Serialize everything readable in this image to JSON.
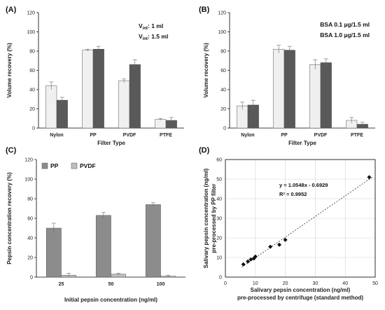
{
  "colors": {
    "light": "#f0f0f0",
    "dark": "#595959",
    "pp": "#8c8c8c",
    "pvdf": "#bdbdbd",
    "axis": "#000000",
    "grid": "#d4d4d4"
  },
  "chart_data": [
    {
      "panel_label": "(A)",
      "type": "bar",
      "categories": [
        "Nylon",
        "PP",
        "PVDF",
        "PTFE"
      ],
      "series": [
        {
          "name": "1 ml",
          "values": [
            44,
            81,
            49,
            9
          ],
          "errors": [
            4,
            1,
            2,
            1
          ]
        },
        {
          "name": "1.5 ml",
          "values": [
            29,
            82,
            66,
            8
          ],
          "errors": [
            3,
            3,
            5,
            3
          ]
        }
      ],
      "legend_prefix": "V",
      "legend_sub": "int",
      "legend_sep": ": ",
      "xlabel": "Filter Type",
      "ylabel": "Volume recovery (%)",
      "ylim": [
        0,
        120
      ],
      "yticks": [
        "0",
        "20",
        "40",
        "60",
        "80",
        "100",
        "120"
      ],
      "legend_position": "top-right",
      "grid": false
    },
    {
      "panel_label": "(B)",
      "type": "bar",
      "categories": [
        "Nylon",
        "PP",
        "PVDF",
        "PTFE"
      ],
      "series": [
        {
          "name": "BSA 0.1 µg/1.5 ml",
          "values": [
            23,
            82,
            66,
            8
          ],
          "errors": [
            4,
            4,
            5,
            3
          ]
        },
        {
          "name": "BSA 1.0 µg/1.5 ml",
          "values": [
            24,
            81,
            68,
            4
          ],
          "errors": [
            5,
            4,
            4,
            2
          ]
        }
      ],
      "xlabel": "Filter Type",
      "ylabel": "Volume recovery (%)",
      "ylim": [
        0,
        120
      ],
      "yticks": [
        "0",
        "20",
        "40",
        "60",
        "80",
        "100",
        "120"
      ],
      "legend_position": "top-right",
      "grid": false
    },
    {
      "panel_label": "(C)",
      "type": "bar",
      "categories": [
        "25",
        "50",
        "100"
      ],
      "series": [
        {
          "name": "PP",
          "values": [
            50,
            63,
            74
          ],
          "errors": [
            5,
            3,
            2
          ]
        },
        {
          "name": "PVDF",
          "values": [
            2,
            3,
            1
          ],
          "errors": [
            2,
            1,
            1
          ]
        }
      ],
      "xlabel": "Initial pepsin concentration (ng/ml)",
      "ylabel": "Pepsin concentration recovery (%)",
      "ylim": [
        0,
        120
      ],
      "yticks": [
        "0",
        "20",
        "40",
        "60",
        "80",
        "100",
        "120"
      ],
      "legend_position": "top-left",
      "grid": false
    },
    {
      "panel_label": "(D)",
      "type": "scatter",
      "x": [
        6,
        7.5,
        8.5,
        9.5,
        10,
        15,
        18,
        20,
        48
      ],
      "y": [
        6.5,
        8,
        9,
        9.5,
        10.5,
        15.5,
        16.5,
        19,
        51
      ],
      "equation": "y = 1.0548x - 0.6929",
      "r2": "R² = 0.9952",
      "xlabel_lines": [
        "Salivary pepsin concentration (ng/ml)",
        "pre-processed by centrifuge (standard method)"
      ],
      "ylabel_lines": [
        "Salivary pepsin concentration (ng/ml)",
        "pre-processed by PP filter"
      ],
      "xlim": [
        0,
        50
      ],
      "ylim": [
        0,
        60
      ],
      "xticks": [
        "0",
        "10",
        "20",
        "30",
        "40",
        "50"
      ],
      "yticks": [
        "0",
        "10",
        "20",
        "30",
        "40",
        "50",
        "60"
      ],
      "grid": true
    }
  ]
}
